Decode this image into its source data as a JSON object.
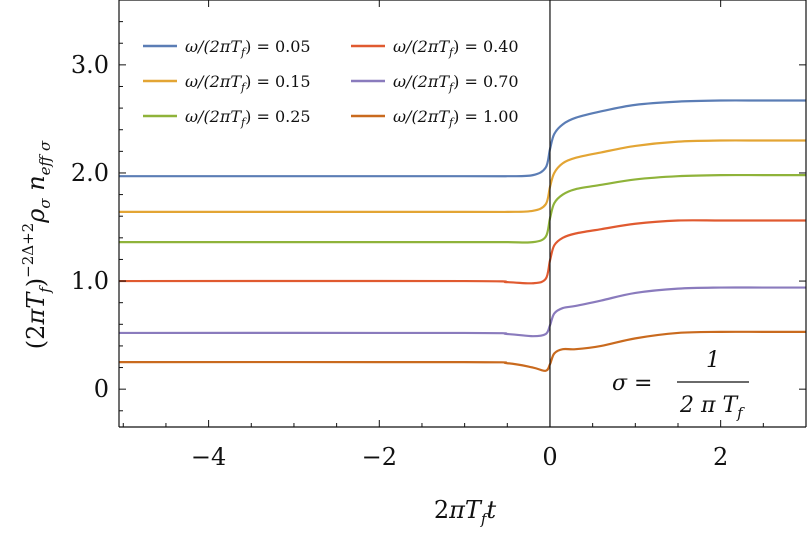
{
  "chart_data": {
    "type": "line",
    "title": "",
    "xlabel": "2πT_f t",
    "ylabel": "(2πT_f)^{-2Δ+2} ρ_σ n_eff σ",
    "xlim": [
      -5.05,
      3.0
    ],
    "ylim": [
      -0.35,
      3.6
    ],
    "xticks": [
      -4,
      -2,
      0,
      2
    ],
    "xtick_labels": [
      "−4",
      "−2",
      "0",
      "2"
    ],
    "yticks": [
      0,
      1.0,
      2.0,
      3.0
    ],
    "ytick_labels": [
      "0",
      "1.0",
      "2.0",
      "3.0"
    ],
    "grid": false,
    "legend_position": "top-left",
    "annotation": {
      "lhs": "σ =",
      "numerator": "1",
      "denominator": "2 π T",
      "denominator_sub": "f"
    },
    "series": [
      {
        "name": "ω/(2πT_f) = 0.05",
        "legend_text": "ω/(2πT",
        "legend_value": ") = 0.05",
        "color": "#5b7db5",
        "x": [
          -5.05,
          -1.0,
          -0.5,
          -0.2,
          -0.05,
          0,
          0.05,
          0.15,
          0.3,
          0.6,
          1.0,
          1.5,
          2.0,
          2.5,
          3.0
        ],
        "y": [
          1.97,
          1.97,
          1.97,
          1.98,
          2.05,
          2.22,
          2.36,
          2.45,
          2.51,
          2.57,
          2.63,
          2.66,
          2.67,
          2.67,
          2.67
        ]
      },
      {
        "name": "ω/(2πT_f) = 0.15",
        "legend_text": "ω/(2πT",
        "legend_value": ") = 0.15",
        "color": "#e3a534",
        "x": [
          -5.05,
          -1.0,
          -0.5,
          -0.2,
          -0.05,
          0,
          0.05,
          0.15,
          0.3,
          0.6,
          1.0,
          1.5,
          2.0,
          2.5,
          3.0
        ],
        "y": [
          1.64,
          1.64,
          1.64,
          1.65,
          1.71,
          1.87,
          2.0,
          2.09,
          2.14,
          2.19,
          2.25,
          2.29,
          2.3,
          2.3,
          2.3
        ]
      },
      {
        "name": "ω/(2πT_f) = 0.25",
        "legend_text": "ω/(2πT",
        "legend_value": ") = 0.25",
        "color": "#8fb33a",
        "x": [
          -5.05,
          -1.0,
          -0.5,
          -0.2,
          -0.05,
          0,
          0.05,
          0.15,
          0.3,
          0.6,
          1.0,
          1.5,
          2.0,
          2.5,
          3.0
        ],
        "y": [
          1.36,
          1.36,
          1.36,
          1.36,
          1.41,
          1.58,
          1.72,
          1.8,
          1.85,
          1.89,
          1.94,
          1.97,
          1.98,
          1.98,
          1.98
        ]
      },
      {
        "name": "ω/(2πT_f) = 0.40",
        "legend_text": "ω/(2πT",
        "legend_value": ") = 0.40",
        "color": "#e05a30",
        "x": [
          -5.05,
          -1.0,
          -0.5,
          -0.2,
          -0.05,
          0,
          0.05,
          0.15,
          0.3,
          0.6,
          1.0,
          1.5,
          2.0,
          2.5,
          3.0
        ],
        "y": [
          1.0,
          1.0,
          0.99,
          0.98,
          1.02,
          1.19,
          1.33,
          1.4,
          1.44,
          1.48,
          1.53,
          1.56,
          1.56,
          1.56,
          1.56
        ]
      },
      {
        "name": "ω/(2πT_f) = 0.70",
        "legend_text": "ω/(2πT",
        "legend_value": ") = 0.70",
        "color": "#8a7bbd",
        "x": [
          -5.05,
          -1.0,
          -0.5,
          -0.2,
          -0.05,
          0,
          0.05,
          0.15,
          0.3,
          0.6,
          1.0,
          1.5,
          2.0,
          2.5,
          3.0
        ],
        "y": [
          0.52,
          0.52,
          0.51,
          0.49,
          0.51,
          0.59,
          0.7,
          0.75,
          0.77,
          0.82,
          0.89,
          0.93,
          0.94,
          0.94,
          0.94
        ]
      },
      {
        "name": "ω/(2πT_f) = 1.00",
        "legend_text": "ω/(2πT",
        "legend_value": ") = 1.00",
        "color": "#c96a1e",
        "x": [
          -5.05,
          -1.0,
          -0.5,
          -0.2,
          -0.05,
          0,
          0.05,
          0.15,
          0.3,
          0.6,
          1.0,
          1.5,
          2.0,
          2.5,
          3.0
        ],
        "y": [
          0.25,
          0.25,
          0.24,
          0.2,
          0.17,
          0.23,
          0.33,
          0.37,
          0.37,
          0.4,
          0.47,
          0.52,
          0.53,
          0.53,
          0.53
        ]
      }
    ]
  }
}
